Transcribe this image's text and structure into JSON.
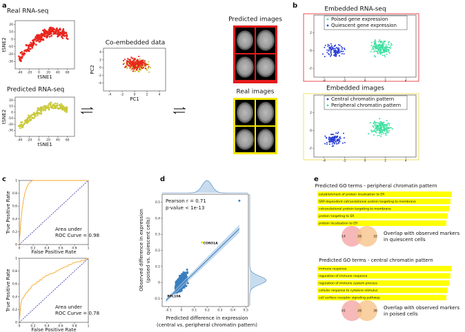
{
  "a": {
    "label": "a",
    "real": {
      "title": "Real RNA-seq",
      "xlabel": "tSNE1",
      "ylabel": "tSNE2",
      "xlim": [
        -50,
        75
      ],
      "ylim": [
        -40,
        25
      ],
      "xticks": [
        -40,
        -20,
        0,
        20,
        40,
        60
      ],
      "yticks": [
        -30,
        -20,
        -10,
        0,
        10,
        20
      ]
    },
    "pred": {
      "title": "Predicted RNA-seq",
      "xlabel": "tSNE1",
      "ylabel": "tSNE2",
      "xlim": [
        -50,
        75
      ],
      "ylim": [
        -40,
        25
      ],
      "xticks": [
        -40,
        -20,
        0,
        20,
        40,
        60
      ],
      "yticks": [
        -30,
        -20,
        -10,
        0,
        10,
        20
      ]
    },
    "co": {
      "title": "Co-embedded data",
      "xlabel": "PC1",
      "ylabel": "PC2",
      "xlim": [
        -5,
        5
      ],
      "ylim": [
        -6,
        5
      ],
      "xticks": [
        -4,
        -2,
        0,
        2,
        4
      ],
      "yticks": [
        -4,
        -2,
        0,
        2,
        4
      ]
    },
    "predicted_images": "Predicted images",
    "real_images": "Real images"
  },
  "b": {
    "label": "b",
    "rna": {
      "title": "Embedded RNA-seq",
      "legend": [
        "Poised gene expression",
        "Quiescent gene expression"
      ],
      "xlim": [
        -5,
        5
      ],
      "ylim": [
        -3,
        4
      ],
      "xticks": [
        -4,
        -2,
        0,
        2,
        4
      ],
      "yticks": [
        -2,
        0,
        2
      ]
    },
    "img": {
      "title": "Embedded images",
      "legend": [
        "Central chromatin pattern",
        "Peripheral chromatin pattern"
      ],
      "xlim": [
        -5,
        5
      ],
      "ylim": [
        -3,
        4
      ],
      "xticks": [
        -4,
        -2,
        0,
        2,
        4
      ],
      "yticks": [
        -2,
        0,
        2
      ]
    }
  },
  "c": {
    "label": "c",
    "ylabel": "True Positive Rate",
    "xlabel": "False Positive Rate",
    "xlim": [
      0,
      1
    ],
    "ylim": [
      0,
      1
    ],
    "xticks": [
      0.0,
      0.2,
      0.4,
      0.6,
      0.8,
      1.0
    ],
    "yticks": [
      0.0,
      0.2,
      0.4,
      0.6,
      0.8,
      1.0
    ],
    "rocs": [
      {
        "text": [
          "Area under",
          "ROC Curve = 0.98"
        ]
      },
      {
        "text": [
          "Area under",
          "ROC Curve = 0.78"
        ]
      }
    ]
  },
  "d": {
    "label": "d",
    "pearson": "Pearson r = 0.71",
    "pvalue": "p-value < 1e-13",
    "ylabel": [
      "Observed difference in expression",
      "(poised vs. quiescent cells)"
    ],
    "xlabel": [
      "Predicted difference in expression",
      "(central vs. peripheral chromatin pattern)"
    ],
    "xlim": [
      -0.15,
      0.52
    ],
    "ylim": [
      -0.15,
      0.55
    ],
    "xticks": [
      -0.1,
      0.0,
      0.1,
      0.2,
      0.3,
      0.4,
      0.5
    ],
    "yticks": [
      -0.1,
      0.0,
      0.1,
      0.2,
      0.3,
      0.4,
      0.5
    ],
    "genes": [
      "CORO1A",
      "RPL10A"
    ]
  },
  "e": {
    "label": "e",
    "groups": [
      {
        "title": "Predicted GO terms - peripheral chromatin pattern",
        "terms": [
          "establishment of protein localization to ER",
          "SRP-dependent cotranslational protein targeting to membrane",
          "cotranslational protein targeting to membrane",
          "protein targeting to ER",
          "protein localization to ER"
        ],
        "overlap": [
          "Overlap with observed markers",
          "in quiescent cells"
        ],
        "venn": [
          "14",
          "28",
          "32"
        ]
      },
      {
        "title": "Predicted GO terms - central chromatin pattern",
        "terms": [
          "immune response",
          "regulation of immune response",
          "regulation of immune system process",
          "cellular response to cytokine stimulus",
          "cell surface receptor signaling pathway"
        ],
        "overlap": [
          "Overlap with observed markers",
          "in poised cells"
        ],
        "venn": [
          "41",
          "28",
          "36"
        ]
      }
    ]
  }
}
